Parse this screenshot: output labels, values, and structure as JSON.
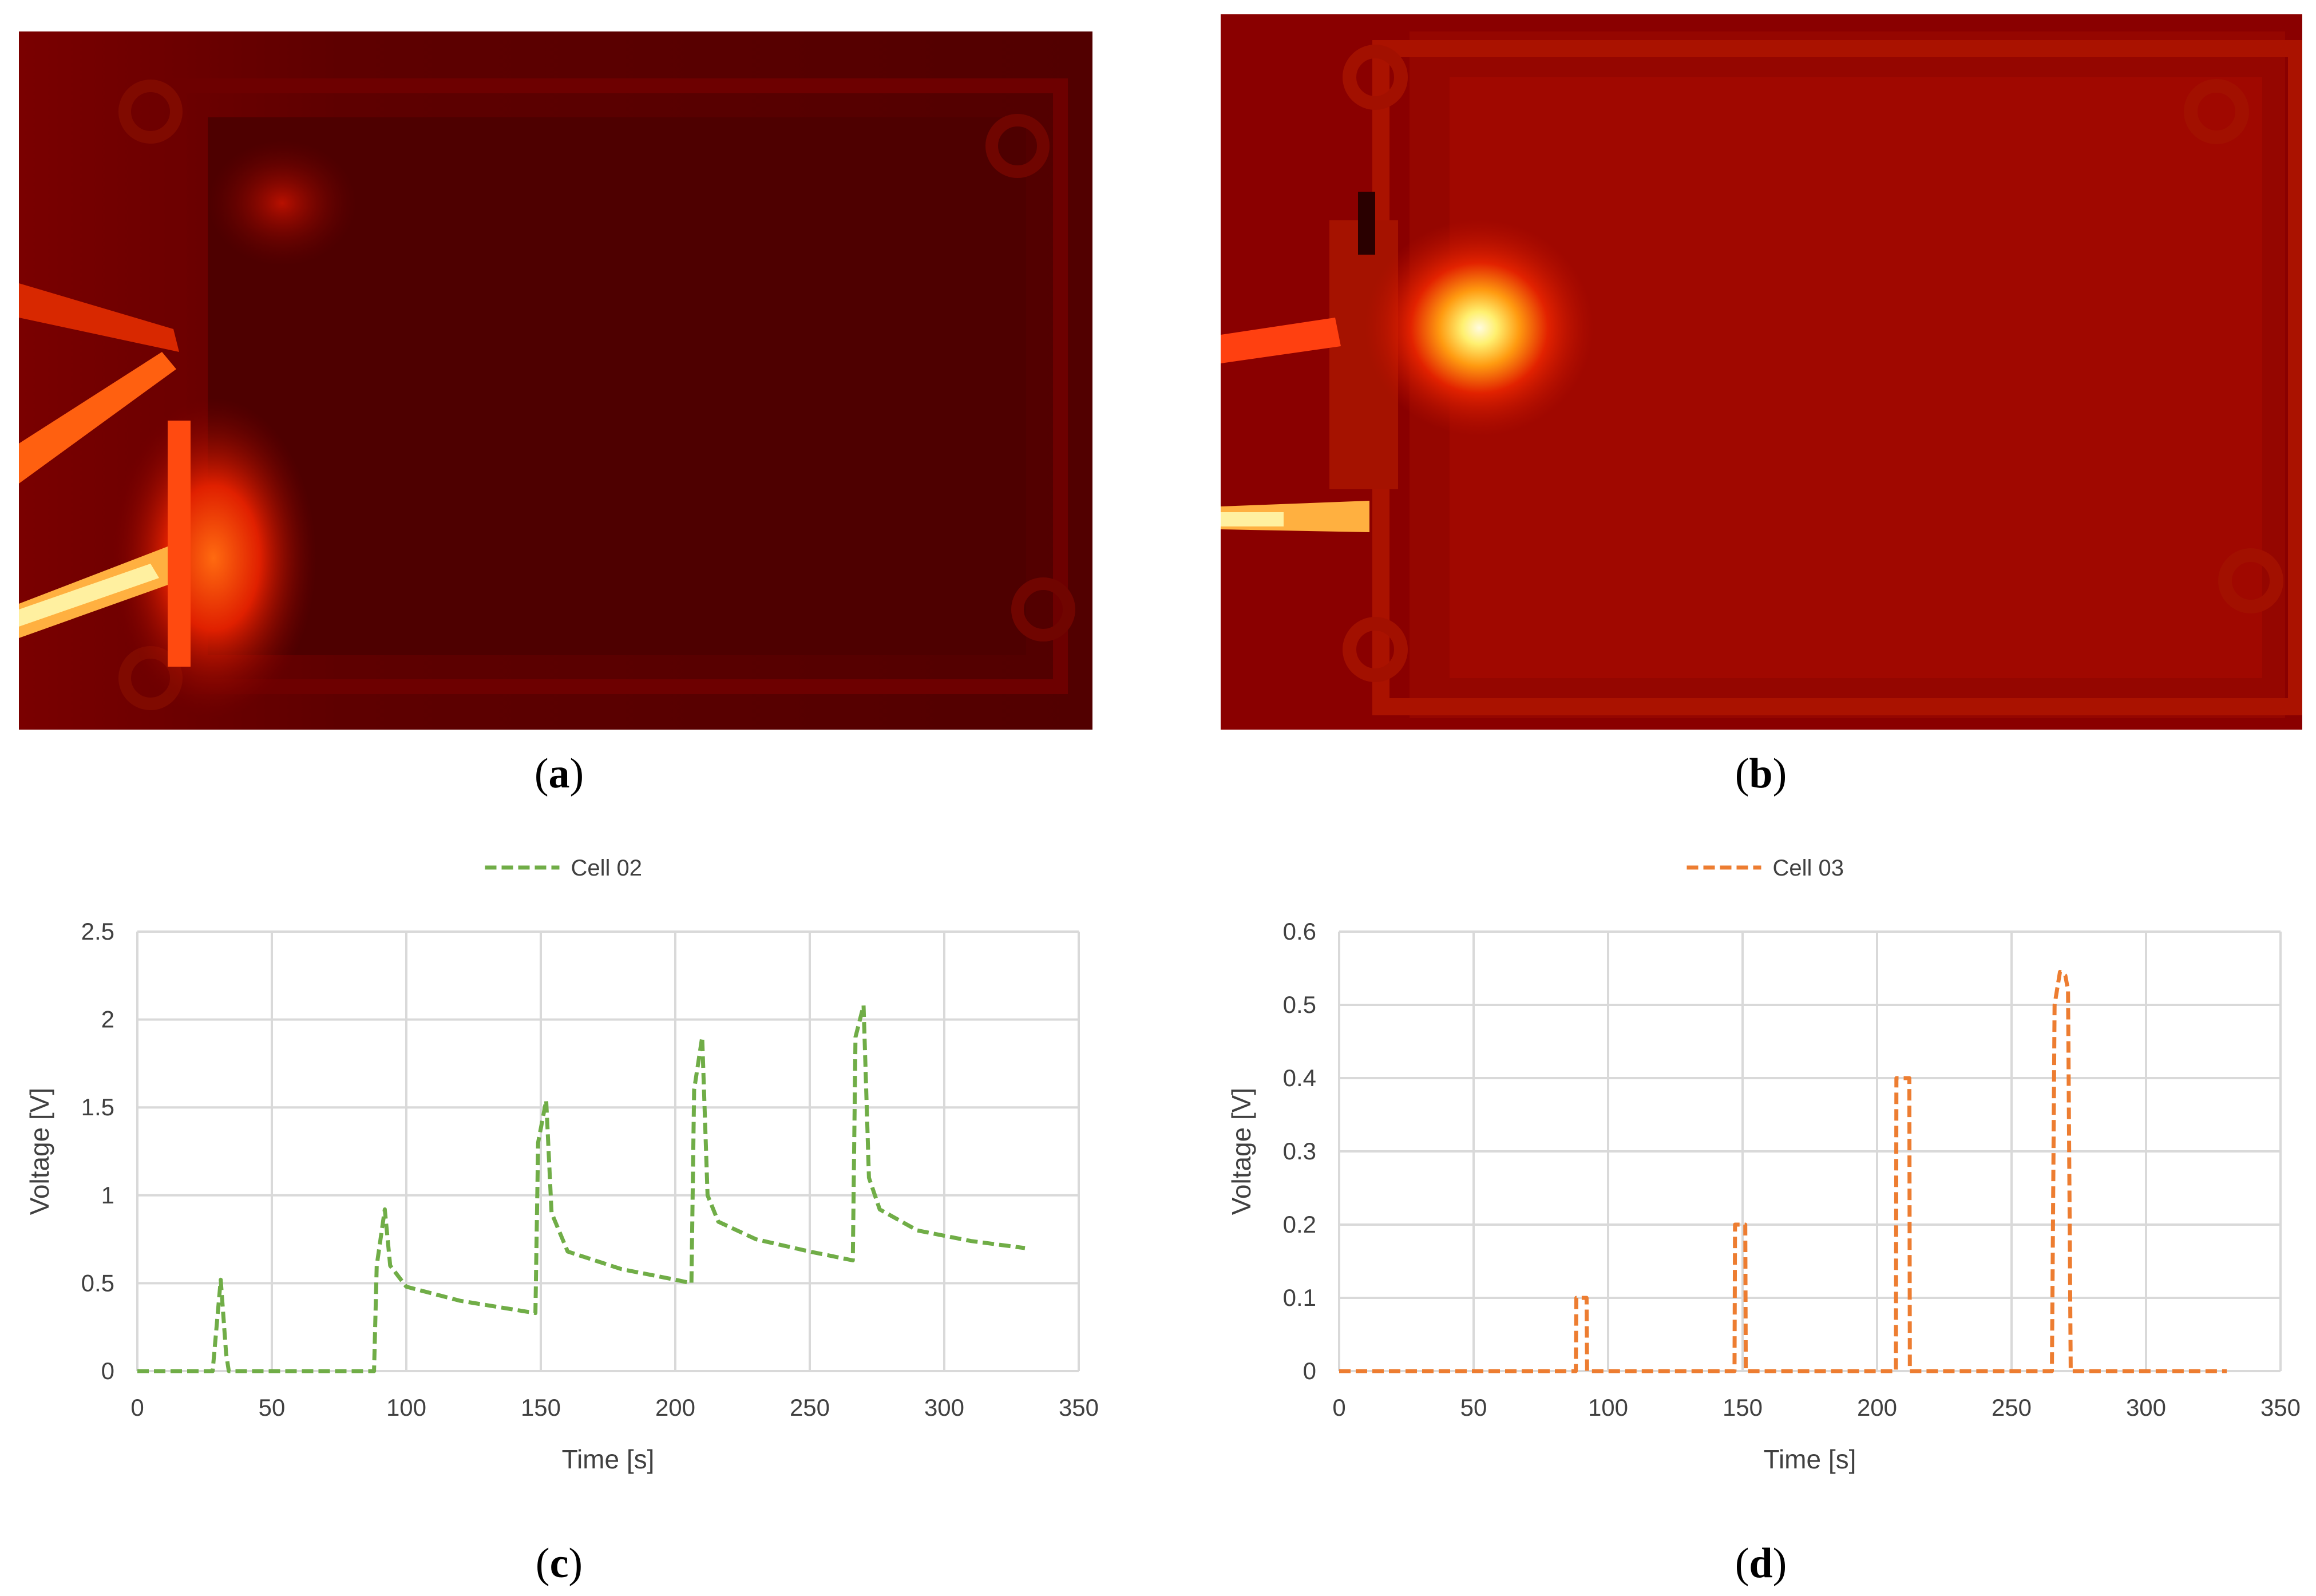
{
  "captions": {
    "a": {
      "open": "(",
      "letter": "a",
      "close": ")"
    },
    "b": {
      "open": "(",
      "letter": "b",
      "close": ")"
    },
    "c": {
      "open": "(",
      "letter": "c",
      "close": ")"
    },
    "d": {
      "open": "(",
      "letter": "d",
      "close": ")"
    }
  },
  "chart_data": [
    {
      "type": "line",
      "panel": "c",
      "xlabel": "Time [s]",
      "ylabel": "Voltage [V]",
      "xlim": [
        0,
        350
      ],
      "ylim": [
        0,
        2.5
      ],
      "xticks": [
        0,
        50,
        100,
        150,
        200,
        250,
        300,
        350
      ],
      "yticks": [
        0,
        0.5,
        1,
        1.5,
        2,
        2.5
      ],
      "grid": true,
      "legend": "top-center",
      "color": "#70ad47",
      "series": [
        {
          "name": "Cell 02",
          "x": [
            0,
            28,
            31,
            33,
            34,
            88,
            89,
            92,
            94,
            100,
            120,
            140,
            148,
            149,
            152,
            154,
            160,
            180,
            200,
            206,
            207,
            210,
            212,
            216,
            230,
            250,
            266,
            267,
            270,
            272,
            276,
            290,
            310,
            330
          ],
          "y": [
            0,
            0,
            0.52,
            0.1,
            0,
            0,
            0.6,
            0.92,
            0.6,
            0.48,
            0.4,
            0.35,
            0.33,
            1.3,
            1.54,
            0.9,
            0.68,
            0.58,
            0.52,
            0.5,
            1.6,
            1.9,
            1.0,
            0.85,
            0.75,
            0.68,
            0.63,
            1.9,
            2.08,
            1.1,
            0.92,
            0.8,
            0.74,
            0.7
          ]
        }
      ]
    },
    {
      "type": "line",
      "panel": "d",
      "xlabel": "Time [s]",
      "ylabel": "Voltage [V]",
      "xlim": [
        0,
        350
      ],
      "ylim": [
        0,
        0.6
      ],
      "xticks": [
        0,
        50,
        100,
        150,
        200,
        250,
        300,
        350
      ],
      "yticks": [
        0,
        0.1,
        0.2,
        0.3,
        0.4,
        0.5,
        0.6
      ],
      "grid": true,
      "legend": "top-center",
      "color": "#ed7d31",
      "series": [
        {
          "name": "Cell 03",
          "x": [
            0,
            88,
            88.2,
            92,
            92.2,
            147,
            147.2,
            151,
            151.2,
            207,
            207.2,
            212,
            212.2,
            265,
            266,
            268,
            270,
            271,
            272,
            330
          ],
          "y": [
            0,
            0,
            0.1,
            0.1,
            0,
            0,
            0.2,
            0.2,
            0,
            0,
            0.4,
            0.4,
            0,
            0,
            0.5,
            0.545,
            0.54,
            0.52,
            0,
            0
          ]
        }
      ]
    }
  ]
}
